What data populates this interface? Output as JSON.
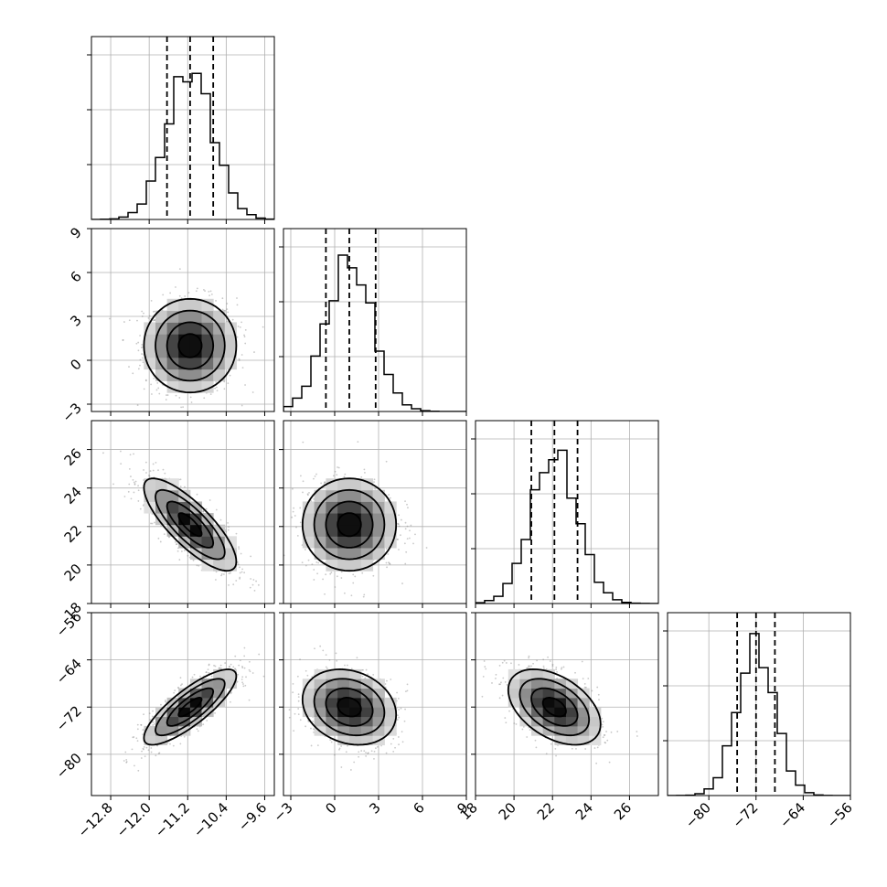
{
  "chart_data": {
    "type": "corner",
    "parameters": [
      {
        "index": 0,
        "mean": -11.15,
        "sd": 0.48,
        "range": [
          -13.2,
          -9.4
        ],
        "quantiles": [
          -11.63,
          -11.15,
          -10.67
        ],
        "ticks": [
          -12.8,
          -12.0,
          -11.2,
          -10.4,
          -9.6
        ],
        "tick_labels": [
          "−12.8",
          "−12.0",
          "−11.2",
          "−10.4",
          "−9.6"
        ]
      },
      {
        "index": 1,
        "mean": 1.0,
        "sd": 1.6,
        "range": [
          -3.5,
          9.0
        ],
        "quantiles": [
          -0.6,
          1.0,
          2.8
        ],
        "ticks": [
          -3,
          0,
          3,
          6,
          9
        ],
        "tick_labels": [
          "−3",
          "0",
          "3",
          "6",
          "9"
        ]
      },
      {
        "index": 2,
        "mean": 22.1,
        "sd": 1.2,
        "range": [
          18.0,
          27.5
        ],
        "quantiles": [
          20.9,
          22.1,
          23.3
        ],
        "ticks": [
          18,
          20,
          22,
          24,
          26
        ],
        "tick_labels": [
          "18",
          "20",
          "22",
          "24",
          "26"
        ]
      },
      {
        "index": 3,
        "mean": -72.0,
        "sd": 3.2,
        "range": [
          -87.0,
          -56.0
        ],
        "quantiles": [
          -75.2,
          -72.0,
          -68.8
        ],
        "ticks": [
          -80,
          -72,
          -64,
          -56
        ],
        "tick_labels": [
          "−80",
          "−72",
          "−64",
          "−56"
        ]
      }
    ],
    "correlations": [
      {
        "pair": [
          0,
          1
        ],
        "rho": 0.0
      },
      {
        "pair": [
          0,
          2
        ],
        "rho": -0.8
      },
      {
        "pair": [
          0,
          3
        ],
        "rho": 0.82
      },
      {
        "pair": [
          1,
          2
        ],
        "rho": 0.0
      },
      {
        "pair": [
          1,
          3
        ],
        "rho": -0.2
      },
      {
        "pair": [
          2,
          3
        ],
        "rho": -0.45
      }
    ],
    "grid": true,
    "histogram_marker_lines": "dashed vertical lines at 16th, 50th, 84th percentiles",
    "scatter_color": "#888888",
    "line_color": "#000000"
  }
}
